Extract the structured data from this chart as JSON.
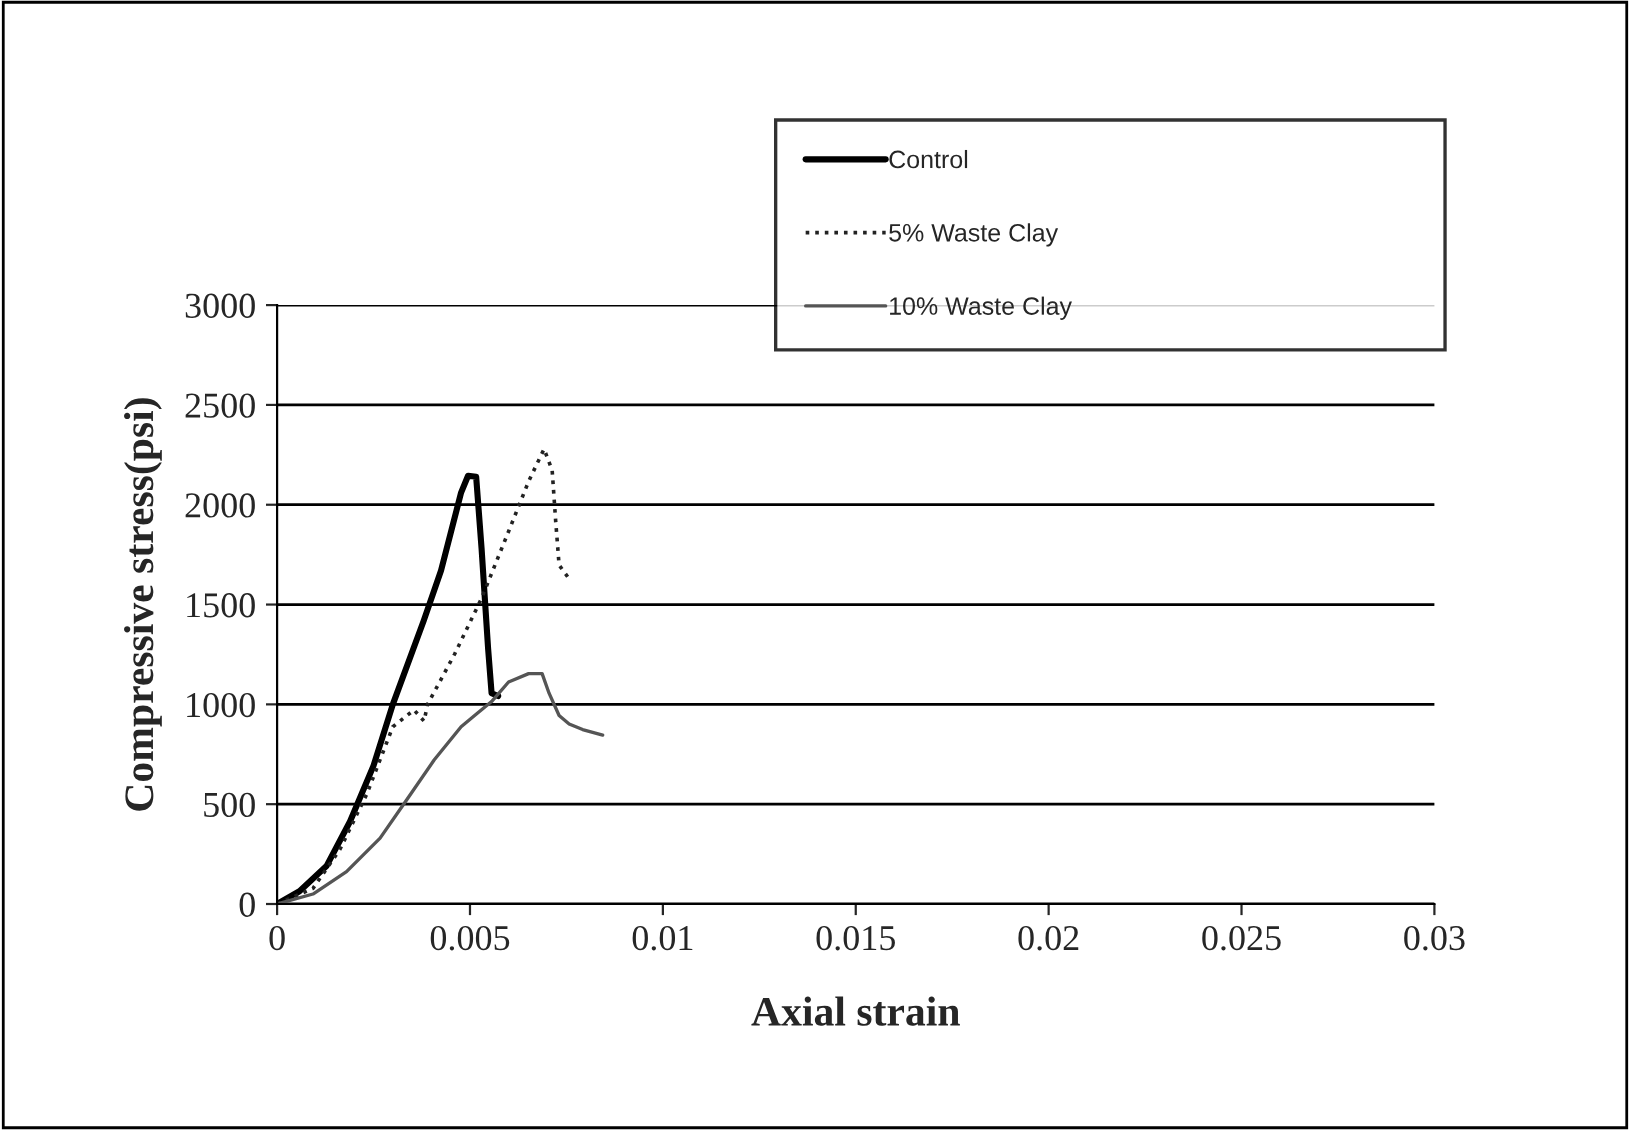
{
  "chart_data": {
    "type": "line",
    "xlabel": "Axial strain",
    "ylabel": "Compressive stress(psi)",
    "xlim": [
      0,
      0.03
    ],
    "xticks": [
      0,
      0.005,
      0.01,
      0.015,
      0.02,
      0.025,
      0.03
    ],
    "ylim": [
      0,
      3000
    ],
    "yticks": [
      0,
      500,
      1000,
      1500,
      2000,
      2500,
      3000
    ],
    "grid": "y",
    "legend": "top right",
    "marker": "none",
    "series": [
      {
        "name": "Control",
        "color": "#000000",
        "line_style": "solid",
        "x": [
          0,
          0.00058,
          0.00128,
          0.00189,
          0.0025,
          0.003,
          0.0038,
          0.00425,
          0.00477,
          0.00495,
          0.00516,
          0.0053,
          0.00547,
          0.00556,
          0.00573
        ],
        "values": [
          0,
          64,
          190,
          413,
          693,
          1000,
          1419,
          1670,
          2061,
          2145,
          2140,
          1782,
          1279,
          1056,
          1042
        ]
      },
      {
        "name": "5% Waste Clay",
        "color": "#222222",
        "line_style": "dotted",
        "x": [
          0,
          0.00093,
          0.00163,
          0.00233,
          0.003,
          0.00355,
          0.00381,
          0.0039,
          0.0046,
          0.0053,
          0.006,
          0.00652,
          0.00692,
          0.00713,
          0.00722,
          0.00731,
          0.00757
        ],
        "values": [
          0,
          78,
          274,
          553,
          888,
          972,
          916,
          1000,
          1251,
          1531,
          1866,
          2117,
          2279,
          2173,
          1922,
          1698,
          1629
        ]
      },
      {
        "name": "10% Waste Clay",
        "color": "#555555",
        "line_style": "solid",
        "x": [
          0,
          0.00093,
          0.0018,
          0.00267,
          0.00337,
          0.00407,
          0.00477,
          0.00512,
          0.00556,
          0.006,
          0.00652,
          0.00687,
          0.00705,
          0.00731,
          0.00757,
          0.00792,
          0.00844
        ],
        "values": [
          0,
          50,
          162,
          330,
          525,
          721,
          888,
          944,
          1014,
          1112,
          1154,
          1154,
          1056,
          944,
          902,
          874,
          846
        ]
      }
    ]
  }
}
